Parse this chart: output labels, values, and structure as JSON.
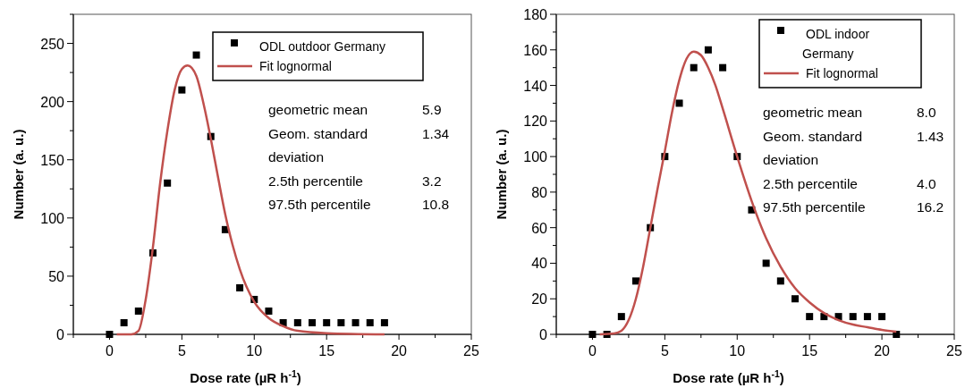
{
  "chart_data": [
    {
      "type": "scatter",
      "xlabel": "Dose rate (µR h$^{-1}$)",
      "ylabel": "Number (a. u.)",
      "xlim": [
        -2.5,
        25
      ],
      "ylim": [
        0,
        275
      ],
      "xticks": [
        {
          "value": -2.5,
          "label": null
        },
        0,
        {
          "value": 2.5,
          "label": null
        },
        5,
        {
          "value": 7.5,
          "label": null
        },
        10,
        {
          "value": 12.5,
          "label": null
        },
        15,
        {
          "value": 17.5,
          "label": null
        },
        20,
        {
          "value": 22.5,
          "label": null
        },
        25
      ],
      "yticks": [
        0,
        {
          "value": 25,
          "label": null
        },
        50,
        {
          "value": 75,
          "label": null
        },
        100,
        {
          "value": 125,
          "label": null
        },
        150,
        {
          "value": 175,
          "label": null
        },
        200,
        {
          "value": 225,
          "label": null
        },
        250,
        {
          "value": 275,
          "label": null
        }
      ],
      "legend": "top right",
      "marker": "square",
      "grid": false,
      "series": [
        {
          "name": "ODL outdoor Germany",
          "color": "#000000",
          "x": [
            0,
            1,
            2,
            3,
            4,
            5,
            6,
            7,
            8,
            9,
            10,
            11,
            12,
            13,
            14,
            15,
            16,
            17,
            18,
            19
          ],
          "values": [
            0,
            10,
            20,
            70,
            130,
            210,
            240,
            170,
            90,
            40,
            30,
            20,
            10,
            10,
            10,
            10,
            10,
            10,
            10,
            10
          ]
        },
        {
          "name": "Fit lognormal",
          "type": "line",
          "marker": "none",
          "color": "#c0504d",
          "x": [
            0.5,
            1.5,
            2,
            2.5,
            3,
            3.5,
            4,
            4.5,
            5,
            5.4,
            6,
            6.5,
            7,
            7.5,
            8,
            8.5,
            9,
            10,
            11,
            12,
            13,
            15,
            19
          ],
          "values": [
            0,
            0,
            3,
            30,
            75,
            130,
            175,
            210,
            228,
            231,
            222,
            198,
            168,
            135,
            103,
            77,
            56,
            28,
            14,
            7,
            3,
            1,
            0
          ]
        }
      ],
      "annotations": [
        "geometric mean",
        "5.9",
        "Geom. standard deviation",
        "1.34",
        "2.5th percentile",
        "3.2",
        "97.5th percentile",
        "10.8"
      ]
    },
    {
      "type": "scatter",
      "xlabel": "Dose rate (µR h$^{-1}$)",
      "ylabel": "Number (a. u.)",
      "xlim": [
        -2.5,
        25
      ],
      "ylim": [
        0,
        180
      ],
      "xticks": [
        {
          "value": -2.5,
          "label": null
        },
        0,
        {
          "value": 2.5,
          "label": null
        },
        5,
        {
          "value": 7.5,
          "label": null
        },
        10,
        {
          "value": 12.5,
          "label": null
        },
        15,
        {
          "value": 17.5,
          "label": null
        },
        20,
        {
          "value": 22.5,
          "label": null
        },
        25
      ],
      "yticks": [
        0,
        {
          "value": 10,
          "label": null
        },
        20,
        {
          "value": 30,
          "label": null
        },
        40,
        {
          "value": 50,
          "label": null
        },
        60,
        {
          "value": 70,
          "label": null
        },
        80,
        {
          "value": 90,
          "label": null
        },
        100,
        {
          "value": 110,
          "label": null
        },
        120,
        {
          "value": 130,
          "label": null
        },
        140,
        {
          "value": 150,
          "label": null
        },
        160,
        {
          "value": 170,
          "label": null
        },
        180
      ],
      "legend": "top right",
      "marker": "square",
      "grid": false,
      "series": [
        {
          "name": "ODL indoor Germany",
          "color": "#000000",
          "x": [
            0,
            1,
            2,
            3,
            4,
            5,
            6,
            7,
            8,
            9,
            10,
            11,
            12,
            13,
            14,
            15,
            16,
            17,
            18,
            19,
            20,
            21
          ],
          "values": [
            0,
            0,
            10,
            30,
            60,
            100,
            130,
            150,
            160,
            150,
            100,
            70,
            40,
            30,
            20,
            10,
            10,
            10,
            10,
            10,
            10,
            0
          ]
        },
        {
          "name": "Fit lognormal",
          "type": "line",
          "marker": "none",
          "color": "#c0504d",
          "x": [
            0.5,
            1.5,
            2,
            2.5,
            3,
            3.5,
            4,
            4.5,
            5,
            5.5,
            6,
            6.5,
            7,
            7.5,
            8,
            8.5,
            9,
            10,
            11,
            12,
            13,
            14,
            15,
            16,
            17,
            18,
            19,
            20,
            21
          ],
          "values": [
            0,
            0.5,
            2,
            8,
            20,
            38,
            60,
            82,
            103,
            125,
            143,
            155,
            159,
            157,
            150,
            140,
            127,
            100,
            75,
            54,
            38,
            26,
            18,
            12,
            8,
            5.5,
            4,
            2.5,
            1.5
          ]
        }
      ],
      "annotations": [
        "geometric mean",
        "8.0",
        "Geom. standard deviation",
        "1.43",
        "2.5th percentile",
        "4.0",
        "97.5th percentile",
        "16.2"
      ]
    }
  ]
}
